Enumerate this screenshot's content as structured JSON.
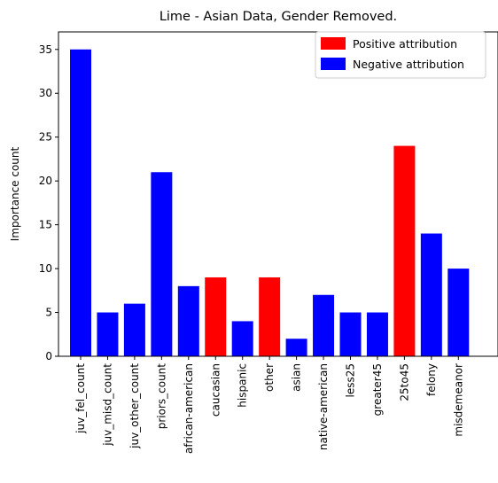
{
  "chart_data": {
    "type": "bar",
    "title": "Lime - Asian Data, Gender Removed.",
    "xlabel": "",
    "ylabel": "Importance count",
    "ylim": [
      0,
      37
    ],
    "yticks": [
      0,
      5,
      10,
      15,
      20,
      25,
      30,
      35
    ],
    "categories": [
      "juv_fel_count",
      "juv_misd_count",
      "juv_other_count",
      "priors_count",
      "african-american",
      "caucasian",
      "hispanic",
      "other",
      "asian",
      "native-american",
      "less25",
      "greater45",
      "25to45",
      "felony",
      "misdemeanor"
    ],
    "values": [
      35,
      5,
      6,
      21,
      8,
      9,
      4,
      9,
      2,
      7,
      5,
      5,
      24,
      14,
      10
    ],
    "attribution": [
      "negative",
      "negative",
      "negative",
      "negative",
      "negative",
      "positive",
      "negative",
      "positive",
      "negative",
      "negative",
      "negative",
      "negative",
      "positive",
      "negative",
      "negative"
    ],
    "colors": {
      "positive": "#ff0000",
      "negative": "#0000ff"
    },
    "legend": {
      "position": "top-right",
      "entries": [
        {
          "key": "positive",
          "label": "Positive attribution"
        },
        {
          "key": "negative",
          "label": "Negative attribution"
        }
      ]
    },
    "grid": false
  }
}
